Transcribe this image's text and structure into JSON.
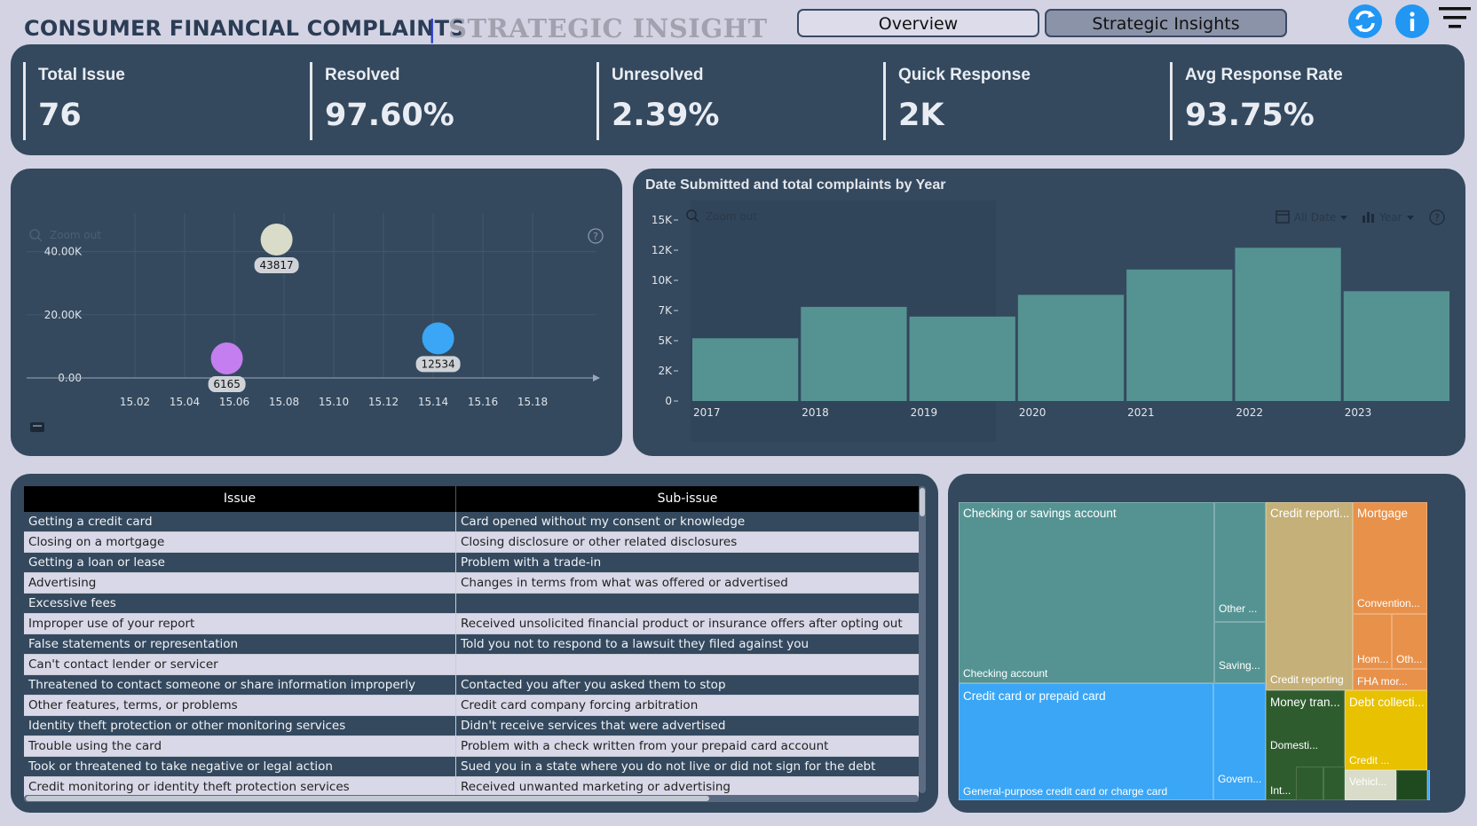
{
  "header": {
    "title": "CONSUMER FINANCIAL COMPLAINTS",
    "separator": "|",
    "subtitle": "STRATEGIC INSIGHT",
    "nav": {
      "overview": "Overview",
      "strategic": "Strategic Insights"
    },
    "icons": [
      "refresh-icon",
      "info-icon",
      "filter-menu-icon"
    ],
    "accent": "#2196f3"
  },
  "kpis": [
    {
      "label": "Total Issue",
      "value": "76"
    },
    {
      "label": "Resolved",
      "value": "97.60%"
    },
    {
      "label": "Unresolved",
      "value": "2.39%"
    },
    {
      "label": "Quick Response",
      "value": "2K"
    },
    {
      "label": "Avg Response Rate",
      "value": "93.75%"
    }
  ],
  "scatter": {
    "zoom_label": "Zoom out",
    "chart_data": {
      "type": "scatter",
      "x_ticks": [
        "15.02",
        "15.04",
        "15.06",
        "15.08",
        "15.10",
        "15.12",
        "15.14",
        "15.16",
        "15.18"
      ],
      "y_ticks": [
        "0.00",
        "20.00K",
        "40.00K"
      ],
      "xlim": [
        15.0,
        15.2
      ],
      "ylim": [
        0,
        50000
      ],
      "points": [
        {
          "x": 15.057,
          "y": 6165,
          "label": "6165",
          "color": "#c47ef0"
        },
        {
          "x": 15.077,
          "y": 43817,
          "label": "43817",
          "color": "#d9dcc8"
        },
        {
          "x": 15.142,
          "y": 12534,
          "label": "12534",
          "color": "#3aa6f5"
        }
      ]
    }
  },
  "bars": {
    "title": "Date Submitted and total complaints by Year",
    "zoom_label": "Zoom out",
    "date_filter": "All Date",
    "granularity": "Year",
    "chart_data": {
      "type": "bar",
      "categories": [
        "2017",
        "2018",
        "2019",
        "2020",
        "2021",
        "2022",
        "2023"
      ],
      "values": [
        5200,
        7800,
        7000,
        8800,
        10900,
        12700,
        9100
      ],
      "y_ticks": [
        "0",
        "2K",
        "5K",
        "7K",
        "10K",
        "12K",
        "15K"
      ],
      "y_tick_values": [
        0,
        2500,
        5000,
        7500,
        10000,
        12500,
        15000
      ],
      "ylim": [
        0,
        15000
      ],
      "color": "#559393"
    }
  },
  "table": {
    "columns": [
      "Issue",
      "Sub-issue"
    ],
    "rows": [
      [
        "Getting a credit card",
        "Card opened without my consent or knowledge"
      ],
      [
        "Closing on a mortgage",
        "Closing disclosure or other related disclosures"
      ],
      [
        "Getting a loan or lease",
        "Problem with a trade-in"
      ],
      [
        "Advertising",
        "Changes in terms from what was offered or advertised"
      ],
      [
        "Excessive fees",
        ""
      ],
      [
        "Improper use of your report",
        "Received unsolicited financial product or insurance offers after opting out"
      ],
      [
        "False statements or representation",
        "Told you not to respond to a lawsuit they filed against you"
      ],
      [
        "Can't contact lender or servicer",
        ""
      ],
      [
        "Threatened to contact someone or share information improperly",
        "Contacted you after you asked them to stop"
      ],
      [
        "Other features, terms, or problems",
        "Credit card company forcing arbitration"
      ],
      [
        "Identity theft protection or other monitoring services",
        "Didn't receive services that were advertised"
      ],
      [
        "Trouble using the card",
        "Problem with a check written from your prepaid card account"
      ],
      [
        "Took or threatened to take negative or legal action",
        "Sued you in a state where you do not live or did not sign for the debt"
      ],
      [
        "Credit monitoring or identity theft protection services",
        "Received unwanted marketing or advertising"
      ]
    ]
  },
  "treemap": {
    "checking": {
      "name": "Checking or savings account",
      "sub1": "Checking account",
      "sub2": "Other ...",
      "sub3": "Saving...",
      "color": "#559393"
    },
    "credit_card": {
      "name": "Credit card or prepaid card",
      "sub1": "General-purpose credit card or charge card",
      "sub2": "Govern...",
      "color": "#3aa6f5"
    },
    "credit_report": {
      "name": "Credit reporti...",
      "sub1": "Credit reporting",
      "color": "#c4b078"
    },
    "mortgage": {
      "name": "Mortgage",
      "sub1": "Convention...",
      "sub2": "Hom...",
      "sub3": "Oth...",
      "sub4": "FHA mor...",
      "color": "#e8914a"
    },
    "money": {
      "name": "Money tran...",
      "sub1": "Domesti...",
      "sub2": "Int...",
      "color": "#2f5c2f"
    },
    "debt": {
      "name": "Debt collecti...",
      "sub1": "Credit ...",
      "color": "#e8c100"
    },
    "vehicle": {
      "name": "Vehicl...",
      "color": "#d9dcc8"
    }
  }
}
